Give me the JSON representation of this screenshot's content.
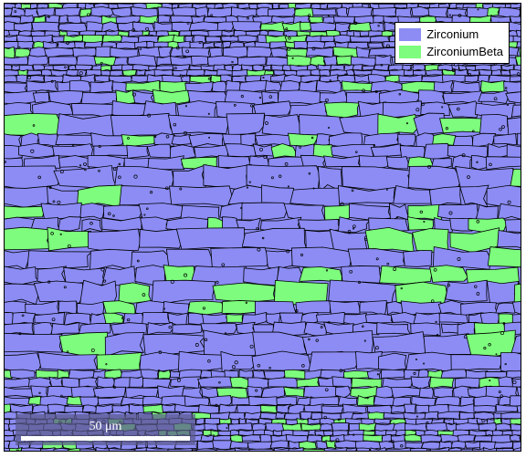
{
  "legend": {
    "items": [
      {
        "label": "Zirconium",
        "color": "#8c8cf4"
      },
      {
        "label": "ZirconiumBeta",
        "color": "#7dfc7d"
      }
    ]
  },
  "scalebar": {
    "label": "50 μm"
  },
  "colors": {
    "zirconium": "#8c8cf4",
    "zirconium_beta": "#7dfc7d",
    "grain_boundary": "#000000"
  }
}
